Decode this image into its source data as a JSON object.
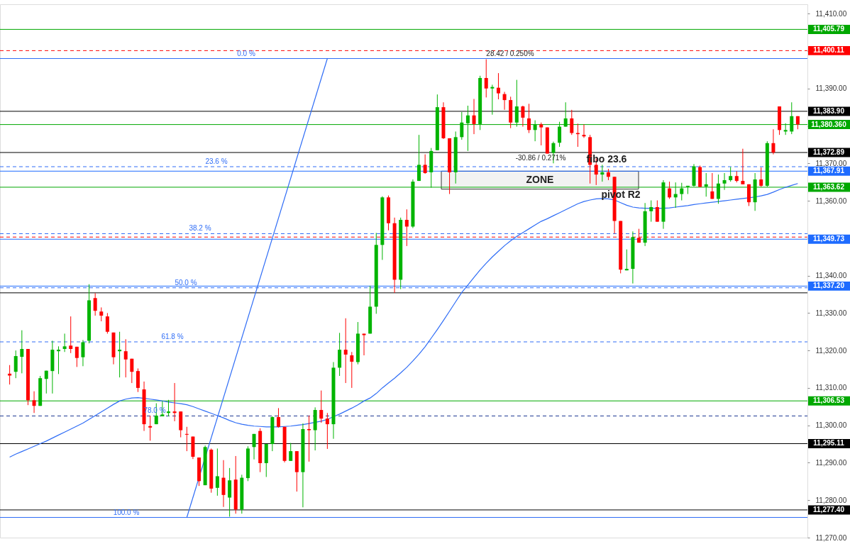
{
  "chart_data": {
    "type": "candlestick",
    "categories": [
      null,
      null,
      null,
      null,
      null,
      null,
      null,
      null,
      null,
      null,
      null,
      null,
      null,
      null,
      null,
      null,
      null,
      null,
      null,
      null,
      null,
      null,
      null,
      null,
      null,
      null,
      null,
      null,
      null,
      null,
      null,
      null,
      null,
      null,
      null,
      null,
      null,
      null,
      null,
      null,
      null,
      null,
      null,
      null,
      null,
      null,
      null,
      null,
      null,
      null,
      null,
      null,
      null,
      null,
      null,
      null,
      null,
      null,
      null,
      null,
      null,
      null,
      null,
      null,
      null,
      null,
      null,
      null,
      null,
      null,
      null,
      null,
      null,
      null,
      null,
      null,
      null,
      null,
      null,
      null,
      null,
      null,
      null,
      null,
      null,
      null,
      null,
      null,
      null,
      null,
      null,
      null,
      null,
      null,
      null,
      null,
      null,
      null,
      null,
      null,
      null,
      null,
      null,
      null,
      null,
      null,
      null,
      null,
      null,
      null,
      null,
      null,
      null,
      null,
      null,
      null,
      null,
      null,
      null,
      null,
      null,
      null,
      null,
      null,
      null,
      null,
      null,
      null,
      null,
      null
    ],
    "ohlc": [
      [
        11313.8,
        11316.1,
        11310.9,
        11313.3
      ],
      [
        11314.3,
        11320.0,
        11312.6,
        11318.5
      ],
      [
        11318.3,
        11325.4,
        11313.9,
        11320.4
      ],
      [
        11320.4,
        11320.4,
        11305.4,
        11306.7
      ],
      [
        11306.7,
        11309.1,
        11303.3,
        11305.2
      ],
      [
        11305.2,
        11313.2,
        11305.2,
        11312.6
      ],
      [
        11312.4,
        11314.6,
        11308.5,
        11314.6
      ],
      [
        11314.5,
        11322.6,
        11308.5,
        11320.2
      ],
      [
        11319.8,
        11321.1,
        11313.7,
        11320.2
      ],
      [
        11320.4,
        11324.5,
        11319.6,
        11321.1
      ],
      [
        11321.3,
        11329.1,
        11319.3,
        11320.4
      ],
      [
        11321.0,
        11321.0,
        11315.6,
        11318.0
      ],
      [
        11318.2,
        11322.8,
        11315.8,
        11322.2
      ],
      [
        11322.6,
        11337.7,
        11321.9,
        11333.4
      ],
      [
        11334.0,
        11335.3,
        11329.3,
        11330.6
      ],
      [
        11330.4,
        11331.5,
        11327.8,
        11329.3
      ],
      [
        11329.1,
        11330.0,
        11324.5,
        11325.0
      ],
      [
        11324.8,
        11324.8,
        11316.3,
        11318.2
      ],
      [
        11319.8,
        11325.0,
        11312.8,
        11320.2
      ],
      [
        11319.8,
        11323.0,
        11312.8,
        11317.6
      ],
      [
        11317.8,
        11317.8,
        11311.3,
        11314.3
      ],
      [
        11314.5,
        11315.2,
        11308.9,
        11310.0
      ],
      [
        11309.6,
        11311.7,
        11298.5,
        11300.3
      ],
      [
        11299.8,
        11302.6,
        11295.9,
        11299.4
      ],
      [
        11300.3,
        11305.9,
        11300.3,
        11302.6
      ],
      [
        11302.4,
        11306.5,
        11302.4,
        11302.9
      ],
      [
        11303.3,
        11306.8,
        11302.4,
        11303.7
      ],
      [
        11303.7,
        11311.3,
        11301.1,
        11303.3
      ],
      [
        11303.7,
        11303.7,
        11296.8,
        11298.7
      ],
      [
        11297.7,
        11299.6,
        11293.1,
        11297.5
      ],
      [
        11297.0,
        11297.0,
        11291.0,
        11291.6
      ],
      [
        11291.4,
        11291.4,
        11283.8,
        11285.1
      ],
      [
        11284.0,
        11294.6,
        11284.0,
        11294.2
      ],
      [
        11293.5,
        11293.8,
        11282.0,
        11283.1
      ],
      [
        11283.3,
        11293.8,
        11281.2,
        11286.4
      ],
      [
        11286.0,
        11290.7,
        11278.2,
        11281.4
      ],
      [
        11280.7,
        11288.6,
        11275.6,
        11285.3
      ],
      [
        11285.5,
        11291.8,
        11276.4,
        11277.5
      ],
      [
        11277.5,
        11286.8,
        11276.4,
        11286.0
      ],
      [
        11285.9,
        11294.4,
        11285.1,
        11293.8
      ],
      [
        11294.2,
        11297.7,
        11290.9,
        11297.7
      ],
      [
        11298.5,
        11299.2,
        11287.5,
        11289.9
      ],
      [
        11289.9,
        11295.0,
        11286.2,
        11295.0
      ],
      [
        11295.0,
        11302.4,
        11293.1,
        11302.2
      ],
      [
        11302.2,
        11304.6,
        11299.4,
        11299.6
      ],
      [
        11299.6,
        11299.6,
        11290.1,
        11290.5
      ],
      [
        11290.5,
        11295.3,
        11290.5,
        11293.1
      ],
      [
        11293.1,
        11293.1,
        11282.3,
        11287.5
      ],
      [
        11287.5,
        11300.5,
        11278.1,
        11299.0
      ],
      [
        11299.0,
        11302.6,
        11290.3,
        11298.7
      ],
      [
        11298.7,
        11304.8,
        11293.3,
        11304.1
      ],
      [
        11304.1,
        11309.3,
        11300.7,
        11301.8
      ],
      [
        11301.8,
        11303.3,
        11293.7,
        11300.3
      ],
      [
        11300.3,
        11316.9,
        11296.4,
        11315.4
      ],
      [
        11315.4,
        11324.7,
        11313.2,
        11320.2
      ],
      [
        11320.2,
        11328.6,
        11311.3,
        11318.9
      ],
      [
        11318.7,
        11319.6,
        11310.0,
        11317.0
      ],
      [
        11316.9,
        11327.6,
        11316.3,
        11324.5
      ],
      [
        11324.5,
        11324.5,
        11318.7,
        11324.1
      ],
      [
        11324.5,
        11337.3,
        11324.5,
        11331.7
      ],
      [
        11331.7,
        11351.4,
        11329.8,
        11348.2
      ],
      [
        11348.2,
        11361.2,
        11344.2,
        11360.9
      ],
      [
        11360.9,
        11361.4,
        11352.1,
        11354.0
      ],
      [
        11354.0,
        11355.5,
        11335.4,
        11338.9
      ],
      [
        11338.9,
        11355.5,
        11336.4,
        11354.9
      ],
      [
        11354.9,
        11357.7,
        11347.9,
        11353.1
      ],
      [
        11353.1,
        11365.7,
        11352.7,
        11365.1
      ],
      [
        11365.3,
        11377.6,
        11365.3,
        11369.6
      ],
      [
        11369.6,
        11372.4,
        11367.2,
        11367.4
      ],
      [
        11367.6,
        11374.1,
        11363.5,
        11373.3
      ],
      [
        11373.5,
        11388.4,
        11373.5,
        11385.0
      ],
      [
        11385.0,
        11386.3,
        11376.5,
        11376.7
      ],
      [
        11376.7,
        11376.7,
        11361.8,
        11367.6
      ],
      [
        11367.6,
        11378.5,
        11364.6,
        11377.0
      ],
      [
        11377.0,
        11383.7,
        11376.3,
        11380.9
      ],
      [
        11380.7,
        11385.4,
        11373.3,
        11382.8
      ],
      [
        11382.8,
        11387.2,
        11377.8,
        11380.5
      ],
      [
        11380.5,
        11393.4,
        11378.9,
        11392.8
      ],
      [
        11392.8,
        11397.8,
        11387.6,
        11390.0
      ],
      [
        11390.0,
        11391.0,
        11383.0,
        11390.4
      ],
      [
        11390.2,
        11394.1,
        11387.1,
        11388.7
      ],
      [
        11388.5,
        11389.1,
        11384.3,
        11386.9
      ],
      [
        11386.9,
        11387.8,
        11379.4,
        11380.9
      ],
      [
        11380.9,
        11392.3,
        11379.8,
        11385.2
      ],
      [
        11385.2,
        11385.4,
        11379.8,
        11382.2
      ],
      [
        11382.0,
        11385.9,
        11378.1,
        11378.9
      ],
      [
        11378.9,
        11381.5,
        11375.9,
        11380.4
      ],
      [
        11380.4,
        11380.9,
        11374.8,
        11379.6
      ],
      [
        11379.6,
        11379.6,
        11372.6,
        11372.6
      ],
      [
        11372.8,
        11375.8,
        11370.0,
        11375.4
      ],
      [
        11375.5,
        11381.1,
        11374.4,
        11379.8
      ],
      [
        11379.8,
        11386.3,
        11379.8,
        11382.0
      ],
      [
        11382.0,
        11384.3,
        11377.6,
        11378.1
      ],
      [
        11378.1,
        11380.6,
        11374.4,
        11377.8
      ],
      [
        11377.6,
        11380.4,
        11376.8,
        11377.2
      ],
      [
        11377.0,
        11377.6,
        11364.6,
        11369.6
      ],
      [
        11369.6,
        11371.3,
        11364.2,
        11367.0
      ],
      [
        11367.0,
        11369.6,
        11365.1,
        11367.6
      ],
      [
        11367.6,
        11368.5,
        11365.5,
        11366.4
      ],
      [
        11366.4,
        11366.4,
        11351.2,
        11354.6
      ],
      [
        11354.6,
        11354.6,
        11340.6,
        11341.6
      ],
      [
        11341.4,
        11347.0,
        11341.4,
        11341.8
      ],
      [
        11341.8,
        11351.8,
        11337.9,
        11350.3
      ],
      [
        11350.1,
        11352.5,
        11348.8,
        11348.8
      ],
      [
        11348.8,
        11359.4,
        11347.9,
        11357.2
      ],
      [
        11357.2,
        11360.1,
        11354.4,
        11358.3
      ],
      [
        11358.3,
        11360.1,
        11354.4,
        11354.4
      ],
      [
        11354.4,
        11365.5,
        11352.5,
        11364.9
      ],
      [
        11363.3,
        11365.1,
        11360.5,
        11360.9
      ],
      [
        11360.9,
        11364.9,
        11358.1,
        11361.8
      ],
      [
        11361.8,
        11364.8,
        11360.1,
        11363.3
      ],
      [
        11363.7,
        11364.0,
        11361.8,
        11364.0
      ],
      [
        11364.0,
        11369.8,
        11363.8,
        11369.2
      ],
      [
        11369.0,
        11369.4,
        11363.7,
        11363.7
      ],
      [
        11363.8,
        11367.4,
        11361.1,
        11364.4
      ],
      [
        11362.5,
        11367.4,
        11360.5,
        11360.5
      ],
      [
        11360.5,
        11367.0,
        11359.2,
        11364.6
      ],
      [
        11364.6,
        11367.4,
        11362.9,
        11365.5
      ],
      [
        11365.5,
        11369.0,
        11365.1,
        11366.6
      ],
      [
        11366.6,
        11367.9,
        11364.9,
        11365.3
      ],
      [
        11365.3,
        11373.9,
        11364.4,
        11364.4
      ],
      [
        11364.4,
        11364.4,
        11358.6,
        11359.6
      ],
      [
        11359.6,
        11367.4,
        11357.3,
        11365.7
      ],
      [
        11365.7,
        11368.9,
        11363.7,
        11364.0
      ],
      [
        11364.0,
        11375.9,
        11363.7,
        11375.4
      ],
      [
        11375.4,
        11379.1,
        11372.4,
        11372.9
      ],
      [
        11385.2,
        11385.2,
        11377.6,
        11378.9
      ],
      [
        11378.5,
        11380.7,
        11377.6,
        11378.9
      ],
      [
        11378.5,
        11386.3,
        11377.8,
        11382.6
      ],
      [
        11382.6,
        11382.6,
        11379.1,
        11380.4
      ]
    ],
    "series": [
      {
        "type": "line",
        "color": "#2f6df6",
        "values": [
          11291.5,
          11292.3,
          11293,
          11293.7,
          11294.4,
          11295.1,
          11295.8,
          11296.6,
          11297.4,
          11298.2,
          11299,
          11299.8,
          11300.6,
          11301.6,
          11302.6,
          11303.6,
          11304.6,
          11305.6,
          11306.5,
          11307,
          11307.3,
          11307.4,
          11307.2,
          11307,
          11306.8,
          11306.5,
          11306.2,
          11306,
          11305.8,
          11305.5,
          11305,
          11304.4,
          11303.8,
          11303.2,
          11302.6,
          11302,
          11301.3,
          11300.7,
          11300.3,
          11300,
          11299.8,
          11299.7,
          11299.6,
          11299.6,
          11299.6,
          11299.7,
          11299.8,
          11300,
          11300.2,
          11300.5,
          11300.8,
          11301.1,
          11301.6,
          11302.3,
          11303,
          11303.8,
          11304.6,
          11305.5,
          11306.5,
          11307.3,
          11308.5,
          11310,
          11311.3,
          11312.6,
          11314,
          11315.5,
          11317.2,
          11319,
          11321,
          11323.3,
          11325.6,
          11328,
          11330.5,
          11333,
          11335.5,
          11337.5,
          11339.5,
          11341.5,
          11343.3,
          11345,
          11346.5,
          11348,
          11349.3,
          11350.5,
          11351.5,
          11352.5,
          11353.5,
          11354.5,
          11355.2,
          11356,
          11356.8,
          11357.6,
          11358.4,
          11359.2,
          11359.8,
          11360.2,
          11360.5,
          11360.6,
          11360.5,
          11360.2,
          11359.5,
          11358.8,
          11358.3,
          11358.1,
          11358,
          11358,
          11358,
          11358,
          11358.1,
          11358.3,
          11358.5,
          11358.7,
          11359,
          11359.2,
          11359.4,
          11359.6,
          11359.8,
          11360,
          11360.2,
          11360.4,
          11360.6,
          11360.8,
          11361,
          11361.3,
          11361.7,
          11362.3,
          11363,
          11363.6,
          11364.1,
          11364.6
        ]
      },
      {
        "type": "line",
        "color": "#2f6df6",
        "values": [
          null,
          null,
          null,
          null,
          null,
          null,
          null,
          null,
          null,
          null,
          null,
          null,
          null,
          null,
          null,
          null,
          null,
          null,
          null,
          null,
          null,
          null,
          null,
          null,
          null,
          null,
          null,
          null,
          null,
          11275.4,
          null,
          null,
          null,
          null,
          null,
          null,
          null,
          null,
          null,
          null,
          null,
          null,
          null,
          null,
          null,
          null,
          null,
          null,
          null,
          null,
          null,
          null,
          11398.0,
          null,
          null,
          null,
          null,
          null,
          null,
          null,
          null,
          null,
          null,
          null,
          null,
          null,
          null,
          null,
          null,
          null,
          null,
          null,
          null,
          null,
          null,
          null,
          null,
          null,
          null,
          null,
          null,
          null,
          null,
          null,
          null,
          null,
          null,
          null,
          null,
          null,
          null,
          null,
          null,
          null,
          null,
          null,
          null,
          null,
          null,
          null,
          null,
          null,
          null,
          null,
          null,
          null,
          null,
          null,
          null,
          null,
          null,
          null,
          null,
          null,
          null,
          null,
          null,
          null,
          null,
          null,
          null,
          null,
          null,
          null,
          null,
          null,
          null,
          null,
          null,
          null
        ]
      }
    ],
    "ylim": [
      11270,
      11412.5
    ],
    "yticks": [
      {
        "value": 11270,
        "label": "11,270.00"
      },
      {
        "value": 11280,
        "label": "11,280.00"
      },
      {
        "value": 11290,
        "label": "11,290.00"
      },
      {
        "value": 11300,
        "label": "11,300.00"
      },
      {
        "value": 11310,
        "label": "11,310.00"
      },
      {
        "value": 11320,
        "label": "11,320.00"
      },
      {
        "value": 11330,
        "label": "11,330.00"
      },
      {
        "value": 11340,
        "label": "11,340.00"
      },
      {
        "value": 11350,
        "label": null
      },
      {
        "value": 11360,
        "label": "11,360.00"
      },
      {
        "value": 11370,
        "label": "11,370.00"
      },
      {
        "value": 11380,
        "label": null
      },
      {
        "value": 11390,
        "label": "11,390.00"
      },
      {
        "value": 11400,
        "label": null
      },
      {
        "value": 11410,
        "label": "11,410.00"
      }
    ],
    "tick_labels": "y",
    "grid": false,
    "ref_lines": [
      {
        "axis": "y",
        "value": 11398.0,
        "color": "#2f6df6",
        "line_style": "solid"
      },
      {
        "axis": "y",
        "value": 11369.1,
        "color": "#2f6df6",
        "line_style": "dashed"
      },
      {
        "axis": "y",
        "value": 11351.2,
        "color": "#2f6df6",
        "line_style": "dashed"
      },
      {
        "axis": "y",
        "value": 11336.75,
        "color": "#2f6df6",
        "line_style": "dashed"
      },
      {
        "axis": "y",
        "value": 11322.3,
        "color": "#2f6df6",
        "line_style": "dashed"
      },
      {
        "axis": "y",
        "value": 11302.5,
        "color": "#1f3a93",
        "line_style": "dashed"
      },
      {
        "axis": "y",
        "value": 11275.4,
        "color": "#2f6df6",
        "line_style": "solid"
      },
      {
        "axis": "y",
        "value": 11405.79,
        "label": "11,405.79",
        "color": "#00a800",
        "line_style": "solid"
      },
      {
        "axis": "y",
        "value": 11400.11,
        "label": "11,400.11",
        "color": "#ff0000",
        "line_style": "dashed"
      },
      {
        "axis": "y",
        "value": 11383.9,
        "label": "11,383.90",
        "color": "#000000",
        "line_style": "solid"
      },
      {
        "axis": "y",
        "value": 11380.36,
        "label": "11,380.360",
        "color": "#00a800",
        "line_style": "solid"
      },
      {
        "axis": "y",
        "value": 11372.89,
        "label": "11,372.89",
        "color": "#000000",
        "line_style": "solid"
      },
      {
        "axis": "y",
        "value": 11367.91,
        "label": "11,367.91",
        "color": "#1e6bff",
        "line_style": "solid"
      },
      {
        "axis": "y",
        "value": 11363.62,
        "label": "11,363.62",
        "color": "#00a800",
        "line_style": "solid"
      },
      {
        "axis": "y",
        "value": 11349.73,
        "label": "11,349.73",
        "color": "#1e6bff",
        "line_style": "solid"
      },
      {
        "axis": "y",
        "value": 11350.3,
        "label": null,
        "color": "#ff0000",
        "line_style": "dashed"
      },
      {
        "axis": "y",
        "value": 11337.2,
        "label": "11,337.20",
        "color": "#1e6bff",
        "line_style": "solid"
      },
      {
        "axis": "y",
        "value": 11335.4,
        "label": null,
        "color": "#000000",
        "line_style": "solid"
      },
      {
        "axis": "y",
        "value": 11306.53,
        "label": "11,306.53",
        "color": "#00a800",
        "line_style": "solid"
      },
      {
        "axis": "y",
        "value": 11295.11,
        "label": "11,295.11",
        "color": "#000000",
        "line_style": "solid"
      },
      {
        "axis": "y",
        "value": 11277.4,
        "label": "11,277.40",
        "color": "#000000",
        "line_style": "solid"
      }
    ],
    "bands": [
      {
        "axis": "y",
        "from": 11363.1,
        "to": 11367.9,
        "label": "ZONE",
        "color": "#f2f2f2"
      }
    ],
    "annotations": [
      {
        "text": "0.0 %",
        "y": 11398.0
      },
      {
        "text": "23.6 %",
        "y": 11369.1
      },
      {
        "text": "38.2 %",
        "y": 11351.2
      },
      {
        "text": "50.0 %",
        "y": 11336.75
      },
      {
        "text": "61.8 %",
        "y": 11322.3
      },
      {
        "text": "78.0 %",
        "y": 11302.5
      },
      {
        "text": "100.0 %",
        "y": 11275.4
      },
      {
        "text": "fibo 23.6",
        "y": 11369.1
      },
      {
        "text": "pivot R2",
        "y": 11363.62
      },
      {
        "text": "28.42 / 0.250%",
        "y": 11399.3
      },
      {
        "text": "-30.86 / 0.271%",
        "y": 11369.1
      }
    ]
  }
}
